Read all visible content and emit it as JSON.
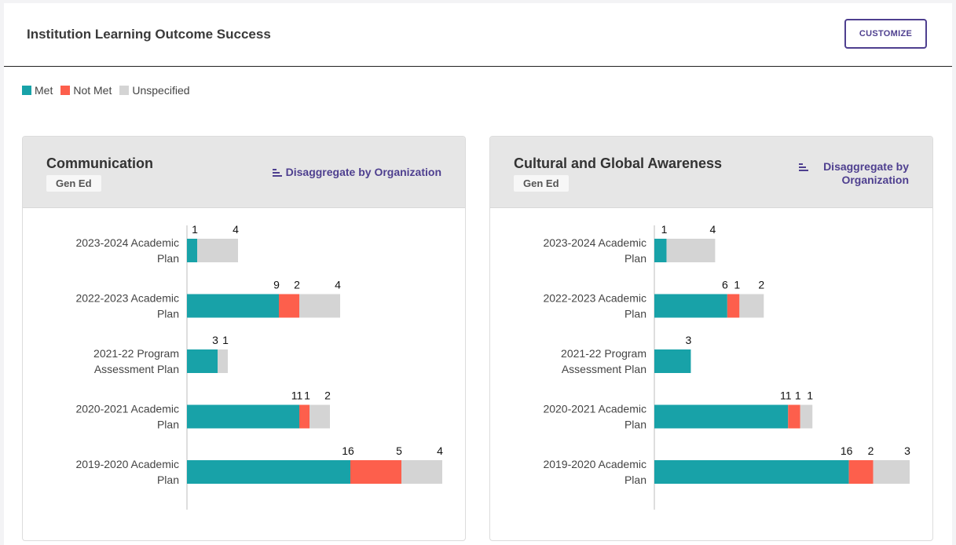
{
  "header": {
    "title": "Institution Learning Outcome Success",
    "customize_label": "CUSTOMIZE"
  },
  "legend": {
    "items": [
      {
        "label": "Met",
        "color": "#18a2a8"
      },
      {
        "label": "Not Met",
        "color": "#fd5f4c"
      },
      {
        "label": "Unspecified",
        "color": "#d4d4d4"
      }
    ]
  },
  "cards": [
    {
      "title": "Communication",
      "tag": "Gen Ed",
      "link_label": "Disaggregate by Organization"
    },
    {
      "title": "Cultural and Global Awareness",
      "tag": "Gen Ed",
      "link_label": "Disaggregate by Organization"
    }
  ],
  "chart_data": [
    {
      "type": "bar",
      "orientation": "horizontal",
      "stacked": true,
      "title": "Communication",
      "categories": [
        [
          "2023-2024 Academic",
          "Plan"
        ],
        [
          "2022-2023 Academic",
          "Plan"
        ],
        [
          "2021-22 Program",
          "Assessment Plan"
        ],
        [
          "2020-2021 Academic",
          "Plan"
        ],
        [
          "2019-2020 Academic",
          "Plan"
        ]
      ],
      "series": [
        {
          "name": "Met",
          "color": "#18a2a8",
          "values": [
            1,
            9,
            3,
            11,
            16
          ]
        },
        {
          "name": "Not Met",
          "color": "#fd5f4c",
          "values": [
            0,
            2,
            0,
            1,
            5
          ]
        },
        {
          "name": "Unspecified",
          "color": "#d4d4d4",
          "values": [
            4,
            4,
            1,
            2,
            4
          ]
        }
      ],
      "xlim": [
        0,
        25
      ]
    },
    {
      "type": "bar",
      "orientation": "horizontal",
      "stacked": true,
      "title": "Cultural and Global Awareness",
      "categories": [
        [
          "2023-2024 Academic",
          "Plan"
        ],
        [
          "2022-2023 Academic",
          "Plan"
        ],
        [
          "2021-22 Program",
          "Assessment Plan"
        ],
        [
          "2020-2021 Academic",
          "Plan"
        ],
        [
          "2019-2020 Academic",
          "Plan"
        ]
      ],
      "series": [
        {
          "name": "Met",
          "color": "#18a2a8",
          "values": [
            1,
            6,
            3,
            11,
            16
          ]
        },
        {
          "name": "Not Met",
          "color": "#fd5f4c",
          "values": [
            0,
            1,
            0,
            1,
            2
          ]
        },
        {
          "name": "Unspecified",
          "color": "#d4d4d4",
          "values": [
            4,
            2,
            0,
            1,
            3
          ]
        }
      ],
      "xlim": [
        0,
        21
      ]
    }
  ]
}
